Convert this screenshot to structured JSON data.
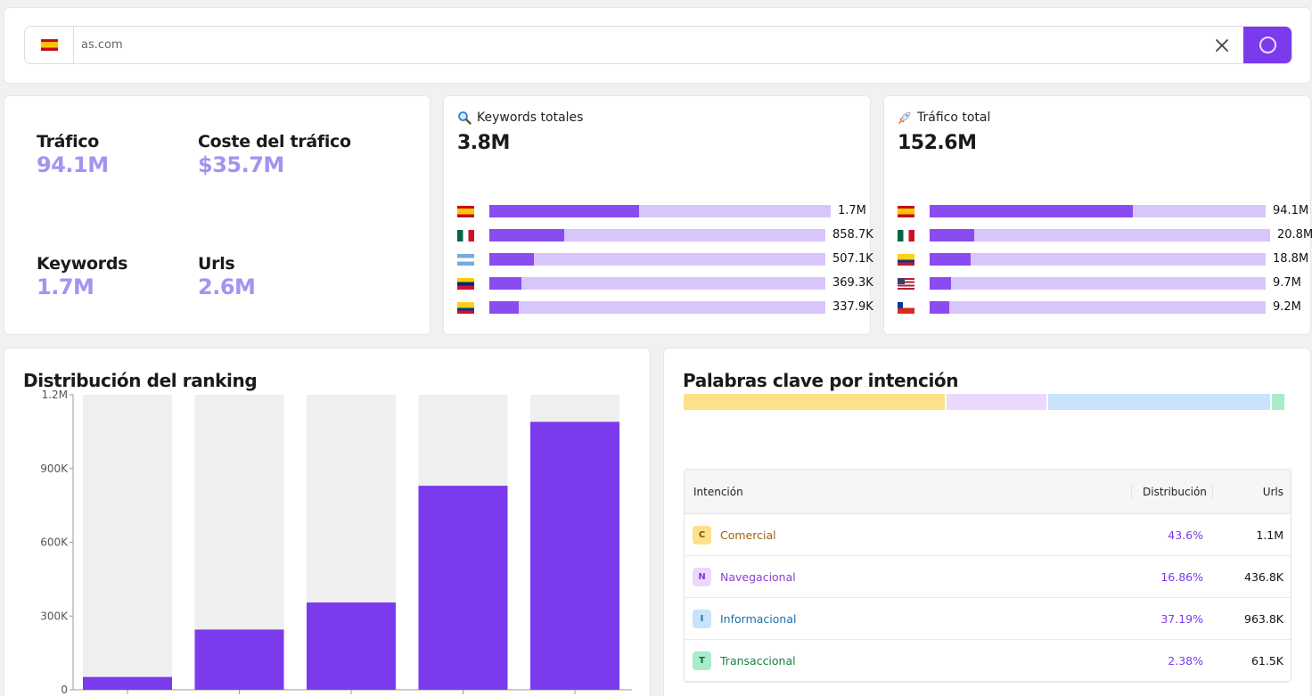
{
  "search": {
    "country": "es",
    "value": "as.com",
    "clear_icon": "close-icon",
    "submit_icon": "spinner-icon"
  },
  "overview": {
    "traffic_label": "Tráfico",
    "traffic_value": "94.1M",
    "cost_label": "Coste del tráfico",
    "cost_value": "$35.7M",
    "keywords_label": "Keywords",
    "keywords_value": "1.7M",
    "urls_label": "Urls",
    "urls_value": "2.6M"
  },
  "keywords_card": {
    "icon": "magnifier-icon",
    "title": "Keywords totales",
    "total": "3.8M",
    "rows": [
      {
        "country": "es",
        "value": "1.7M",
        "fill": 0.454,
        "track": 0.833
      },
      {
        "country": "mx",
        "value": "858.7K",
        "fill": 0.228,
        "track": 0.82
      },
      {
        "country": "ar",
        "value": "507.1K",
        "fill": 0.135,
        "track": 0.82
      },
      {
        "country": "ve",
        "value": "369.3K",
        "fill": 0.098,
        "track": 0.82
      },
      {
        "country": "co",
        "value": "337.9K",
        "fill": 0.09,
        "track": 0.82
      }
    ]
  },
  "traffic_card": {
    "icon": "rocket-icon",
    "title": "Tráfico total",
    "total": "152.6M",
    "rows": [
      {
        "country": "es",
        "value": "94.1M",
        "fill": 0.617,
        "track": 0.82
      },
      {
        "country": "mx",
        "value": "20.8M",
        "fill": 0.136,
        "track": 0.831
      },
      {
        "country": "co",
        "value": "18.8M",
        "fill": 0.123,
        "track": 0.82
      },
      {
        "country": "us",
        "value": "9.7M",
        "fill": 0.064,
        "track": 0.82
      },
      {
        "country": "cl",
        "value": "9.2M",
        "fill": 0.06,
        "track": 0.82
      }
    ]
  },
  "ranking": {
    "title": "Distribución del ranking"
  },
  "chart_data": {
    "type": "bar",
    "title": "Distribución del ranking",
    "categories": [
      "",
      "",
      "",
      "",
      ""
    ],
    "values": [
      52000,
      245000,
      355000,
      830000,
      1090000
    ],
    "background_max": 1200000,
    "yticks": [
      {
        "v": 1200000,
        "label": "1.2M"
      },
      {
        "v": 900000,
        "label": "900K"
      },
      {
        "v": 600000,
        "label": "600K"
      },
      {
        "v": 300000,
        "label": "300K"
      },
      {
        "v": 0,
        "label": "0"
      }
    ],
    "ylim": [
      0,
      1200000
    ],
    "bar_color": "#7c3aed",
    "background_color": "#efefef"
  },
  "intent": {
    "title": "Palabras clave por intención",
    "segments": [
      {
        "name": "Comercial",
        "share": 0.436,
        "color": "#fde08a"
      },
      {
        "name": "Navegacional",
        "share": 0.1686,
        "color": "#ead9fb"
      },
      {
        "name": "Informacional",
        "share": 0.3719,
        "color": "#c8e3fb"
      },
      {
        "name": "Transaccional",
        "share": 0.0238,
        "color": "#a8ecc9"
      }
    ],
    "columns": {
      "intent": "Intención",
      "distribution": "Distribución",
      "urls": "Urls"
    },
    "rows": [
      {
        "letter": "C",
        "name": "Comercial",
        "dist": "43.6%",
        "urls": "1.1M",
        "badge_bg": "#fde08a",
        "badge_fg": "#7a5300",
        "text": "#a16207"
      },
      {
        "letter": "N",
        "name": "Navegacional",
        "dist": "16.86%",
        "urls": "436.8K",
        "badge_bg": "#ead9fb",
        "badge_fg": "#7c3aed",
        "text": "#8b3fd9"
      },
      {
        "letter": "I",
        "name": "Informacional",
        "dist": "37.19%",
        "urls": "963.8K",
        "badge_bg": "#c8e3fb",
        "badge_fg": "#1d6fa5",
        "text": "#1f6fa8"
      },
      {
        "letter": "T",
        "name": "Transaccional",
        "dist": "2.38%",
        "urls": "61.5K",
        "badge_bg": "#a8ecc9",
        "badge_fg": "#0f6b43",
        "text": "#15803d"
      }
    ]
  }
}
